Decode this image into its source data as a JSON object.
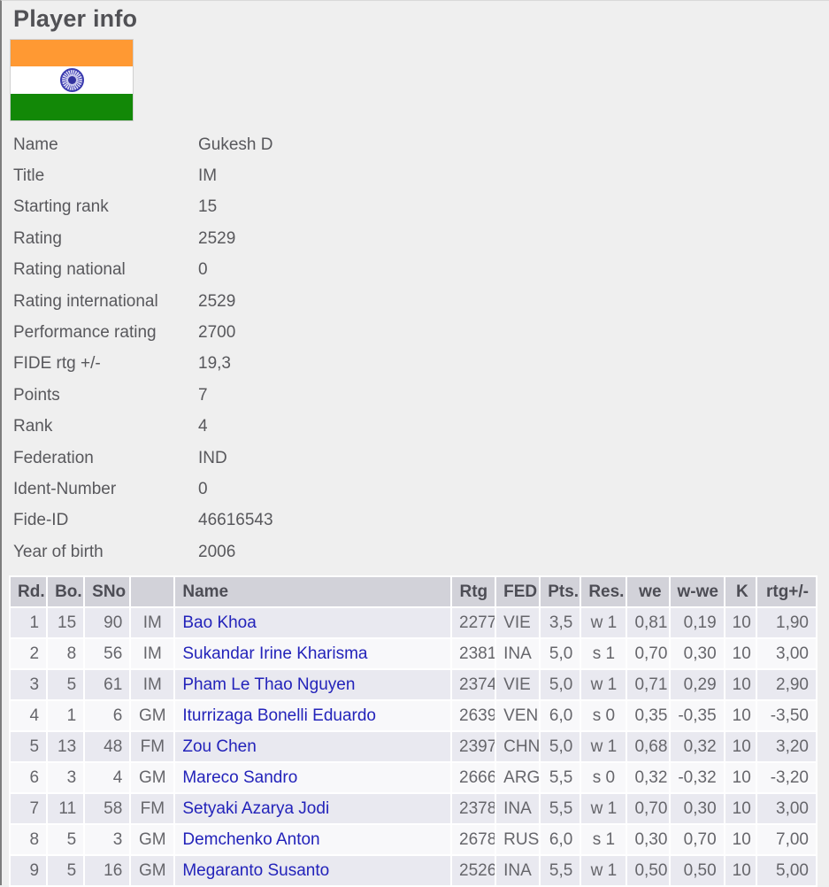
{
  "page": {
    "title": "Player info"
  },
  "flag": {
    "country": "India",
    "colors": {
      "saffron": "#ff9933",
      "white": "#ffffff",
      "green": "#128807",
      "navy": "#3a3aae"
    }
  },
  "details": [
    {
      "label": "Name",
      "value": "Gukesh D"
    },
    {
      "label": "Title",
      "value": "IM"
    },
    {
      "label": "Starting rank",
      "value": "15"
    },
    {
      "label": "Rating",
      "value": "2529"
    },
    {
      "label": "Rating national",
      "value": "0"
    },
    {
      "label": "Rating international",
      "value": "2529"
    },
    {
      "label": "Performance rating",
      "value": "2700"
    },
    {
      "label": "FIDE rtg +/-",
      "value": "19,3"
    },
    {
      "label": "Points",
      "value": "7"
    },
    {
      "label": "Rank",
      "value": "4"
    },
    {
      "label": "Federation",
      "value": "IND"
    },
    {
      "label": "Ident-Number",
      "value": "0"
    },
    {
      "label": "Fide-ID",
      "value": "46616543"
    },
    {
      "label": "Year of birth",
      "value": "2006"
    }
  ],
  "results_table": {
    "headers": [
      "Rd.",
      "Bo.",
      "SNo",
      "",
      "Name",
      "Rtg",
      "FED",
      "Pts.",
      "Res.",
      "we",
      "w-we",
      "K",
      "rtg+/-"
    ],
    "rows": [
      {
        "rd": "1",
        "bo": "15",
        "sno": "90",
        "title": "IM",
        "name": "Bao Khoa",
        "rtg": "2277",
        "fed": "VIE",
        "pts": "3,5",
        "res": "w 1",
        "we": "0,81",
        "wwe": "0,19",
        "k": "10",
        "rtgpm": "1,90"
      },
      {
        "rd": "2",
        "bo": "8",
        "sno": "56",
        "title": "IM",
        "name": "Sukandar Irine Kharisma",
        "rtg": "2381",
        "fed": "INA",
        "pts": "5,0",
        "res": "s 1",
        "we": "0,70",
        "wwe": "0,30",
        "k": "10",
        "rtgpm": "3,00"
      },
      {
        "rd": "3",
        "bo": "5",
        "sno": "61",
        "title": "IM",
        "name": "Pham Le Thao Nguyen",
        "rtg": "2374",
        "fed": "VIE",
        "pts": "5,0",
        "res": "w 1",
        "we": "0,71",
        "wwe": "0,29",
        "k": "10",
        "rtgpm": "2,90"
      },
      {
        "rd": "4",
        "bo": "1",
        "sno": "6",
        "title": "GM",
        "name": "Iturrizaga Bonelli Eduardo",
        "rtg": "2639",
        "fed": "VEN",
        "pts": "6,0",
        "res": "s 0",
        "we": "0,35",
        "wwe": "-0,35",
        "k": "10",
        "rtgpm": "-3,50"
      },
      {
        "rd": "5",
        "bo": "13",
        "sno": "48",
        "title": "FM",
        "name": "Zou Chen",
        "rtg": "2397",
        "fed": "CHN",
        "pts": "5,0",
        "res": "w 1",
        "we": "0,68",
        "wwe": "0,32",
        "k": "10",
        "rtgpm": "3,20"
      },
      {
        "rd": "6",
        "bo": "3",
        "sno": "4",
        "title": "GM",
        "name": "Mareco Sandro",
        "rtg": "2666",
        "fed": "ARG",
        "pts": "5,5",
        "res": "s 0",
        "we": "0,32",
        "wwe": "-0,32",
        "k": "10",
        "rtgpm": "-3,20"
      },
      {
        "rd": "7",
        "bo": "11",
        "sno": "58",
        "title": "FM",
        "name": "Setyaki Azarya Jodi",
        "rtg": "2378",
        "fed": "INA",
        "pts": "5,5",
        "res": "w 1",
        "we": "0,70",
        "wwe": "0,30",
        "k": "10",
        "rtgpm": "3,00"
      },
      {
        "rd": "8",
        "bo": "5",
        "sno": "3",
        "title": "GM",
        "name": "Demchenko Anton",
        "rtg": "2678",
        "fed": "RUS",
        "pts": "6,0",
        "res": "s 1",
        "we": "0,30",
        "wwe": "0,70",
        "k": "10",
        "rtgpm": "7,00"
      },
      {
        "rd": "9",
        "bo": "5",
        "sno": "16",
        "title": "GM",
        "name": "Megaranto Susanto",
        "rtg": "2526",
        "fed": "INA",
        "pts": "5,5",
        "res": "w 1",
        "we": "0,50",
        "wwe": "0,50",
        "k": "10",
        "rtgpm": "5,00"
      }
    ]
  },
  "colors": {
    "page_background": "#efefef",
    "table_header_background": "#d2d2d9",
    "row_stripe_dark": "#e9e9f0",
    "row_stripe_light": "#f8f8fa",
    "link_blue": "#2323ba",
    "text_gray": "#58585c"
  }
}
